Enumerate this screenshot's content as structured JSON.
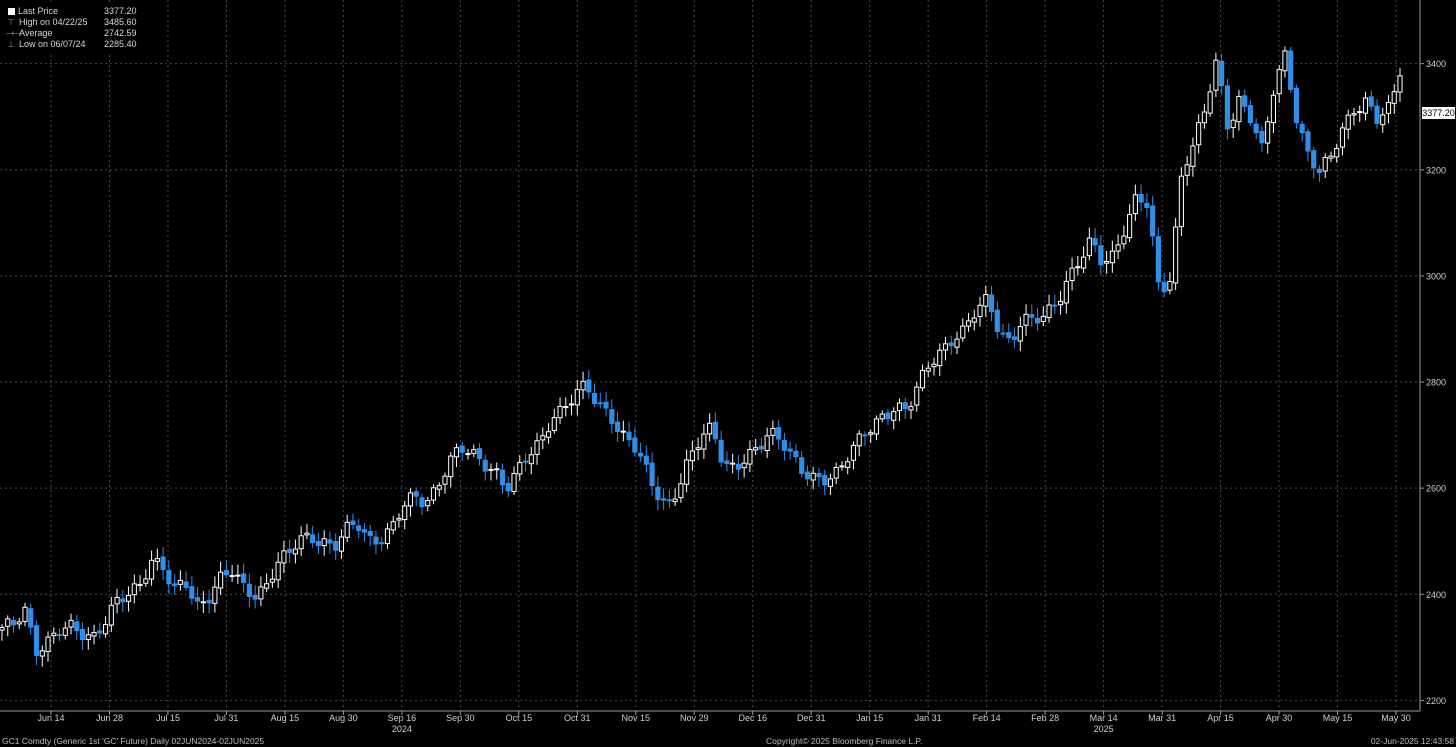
{
  "legend": {
    "last_price_label": "Last Price",
    "last_price_value": "3377.20",
    "high_label": "High on 04/22/25",
    "high_value": "3485.60",
    "avg_label": "Average",
    "avg_value": "2742.59",
    "low_label": "Low on 06/07/24",
    "low_value": "2285.40"
  },
  "last_price_tag": "3377.20",
  "footer": {
    "ticker": "GC1 Comdty (Generic 1st 'GC' Future)  Daily 02JUN2024-02JUN2025",
    "copyright": "Copyright© 2025 Bloomberg Finance L.P.",
    "timestamp": "02-Jun-2025 12:43:58"
  },
  "colors": {
    "up": "#000000",
    "up_border": "#ffffff",
    "down": "#2f8fe8",
    "grid": "#4a4a4a",
    "background": "#000000"
  },
  "chart_data": {
    "type": "candlestick",
    "ylim": [
      2180,
      3520
    ],
    "yticks": [
      2200,
      2400,
      2600,
      2800,
      3000,
      3200,
      3400
    ],
    "xticks": [
      "Jun 14",
      "Jun 28",
      "Jul 15",
      "Jul 31",
      "Aug 15",
      "Aug 30",
      "Sep 16",
      "Sep 30",
      "Oct 15",
      "Oct 31",
      "Nov 15",
      "Nov 29",
      "Dec 16",
      "Dec 31",
      "Jan 15",
      "Jan 31",
      "Feb 14",
      "Feb 28",
      "Mar 14",
      "Mar 31",
      "Apr 15",
      "Apr 30",
      "May 15",
      "May 30"
    ],
    "year_labels": [
      {
        "label": "2024",
        "under_tick": "Sep 16"
      },
      {
        "label": "2025",
        "under_tick": "Mar 14"
      }
    ],
    "grid": true,
    "close_path": [
      2330,
      2340,
      2375,
      2300,
      2310,
      2325,
      2335,
      2330,
      2325,
      2350,
      2380,
      2395,
      2420,
      2470,
      2455,
      2400,
      2420,
      2380,
      2400,
      2430,
      2440,
      2410,
      2400,
      2420,
      2460,
      2470,
      2500,
      2510,
      2505,
      2490,
      2515,
      2530,
      2505,
      2510,
      2525,
      2560,
      2580,
      2575,
      2610,
      2650,
      2670,
      2660,
      2650,
      2640,
      2600,
      2625,
      2660,
      2690,
      2740,
      2750,
      2770,
      2790,
      2760,
      2750,
      2700,
      2680,
      2640,
      2600,
      2570,
      2600,
      2650,
      2690,
      2720,
      2650,
      2640,
      2650,
      2670,
      2710,
      2700,
      2660,
      2620,
      2610,
      2620,
      2640,
      2670,
      2690,
      2710,
      2740,
      2760,
      2750,
      2790,
      2830,
      2860,
      2890,
      2900,
      2930,
      2950,
      2900,
      2880,
      2920,
      2910,
      2920,
      2950,
      3000,
      3030,
      3060,
      3020,
      3040,
      3100,
      3150,
      3130,
      2960,
      3000,
      3210,
      3250,
      3310,
      3400,
      3280,
      3340,
      3300,
      3230,
      3350,
      3420,
      3300,
      3230,
      3190,
      3220,
      3280,
      3320,
      3330,
      3290,
      3310,
      3377.2
    ]
  }
}
